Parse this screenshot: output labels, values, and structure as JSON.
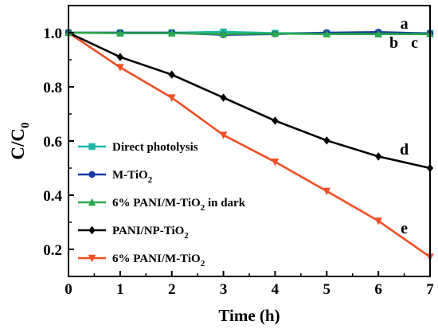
{
  "chart_data": {
    "type": "line",
    "xlabel": "Time (h)",
    "ylabel": {
      "main": "C/C",
      "sub": "0"
    },
    "xlim": [
      0,
      7
    ],
    "ylim": [
      0.1,
      1.1
    ],
    "x_ticks": [
      "0",
      "1",
      "2",
      "3",
      "4",
      "5",
      "6",
      "7"
    ],
    "y_ticks": [
      "0.2",
      "0.4",
      "0.6",
      "0.8",
      "1.0"
    ],
    "y_tick_values": [
      0.2,
      0.4,
      0.6,
      0.8,
      1.0
    ],
    "grid": false,
    "legend_position": "lower-left",
    "x": [
      0,
      1,
      2,
      3,
      4,
      5,
      6,
      7
    ],
    "series": [
      {
        "label": "Direct photolysis",
        "sub": "",
        "tail": "",
        "color": "#1fb8a8",
        "marker": "square",
        "values": [
          1.0,
          1.0,
          1.0,
          1.003,
          0.998,
          0.998,
          0.998,
          0.998
        ]
      },
      {
        "label": "M-TiO",
        "sub": "2",
        "tail": "",
        "color": "#1a3aa0",
        "marker": "circle",
        "values": [
          1.0,
          1.0,
          1.0,
          0.992,
          0.995,
          1.0,
          1.002,
          0.997
        ]
      },
      {
        "label": "6% PANI/M-TiO",
        "sub": "2",
        "tail": " in dark",
        "color": "#2aa84a",
        "marker": "triangle-up",
        "values": [
          1.0,
          0.998,
          0.998,
          0.995,
          0.997,
          0.995,
          0.995,
          0.995
        ]
      },
      {
        "label": "PANI/NP-TiO",
        "sub": "2",
        "tail": "",
        "color": "#000000",
        "marker": "diamond",
        "values": [
          1.0,
          0.91,
          0.845,
          0.76,
          0.675,
          0.602,
          0.543,
          0.5
        ]
      },
      {
        "label": "6% PANI/M-TiO",
        "sub": "2",
        "tail": "",
        "color": "#f04e23",
        "marker": "triangle-down",
        "values": [
          1.0,
          0.872,
          0.76,
          0.622,
          0.523,
          0.415,
          0.305,
          0.172
        ]
      }
    ],
    "curve_labels": [
      {
        "text": "a",
        "x": 6.5,
        "y": 1.035
      },
      {
        "text": "b",
        "x": 6.3,
        "y": 0.965
      },
      {
        "text": "c",
        "x": 6.7,
        "y": 0.965
      },
      {
        "text": "d",
        "x": 6.5,
        "y": 0.57
      },
      {
        "text": "e",
        "x": 6.5,
        "y": 0.28
      }
    ]
  }
}
